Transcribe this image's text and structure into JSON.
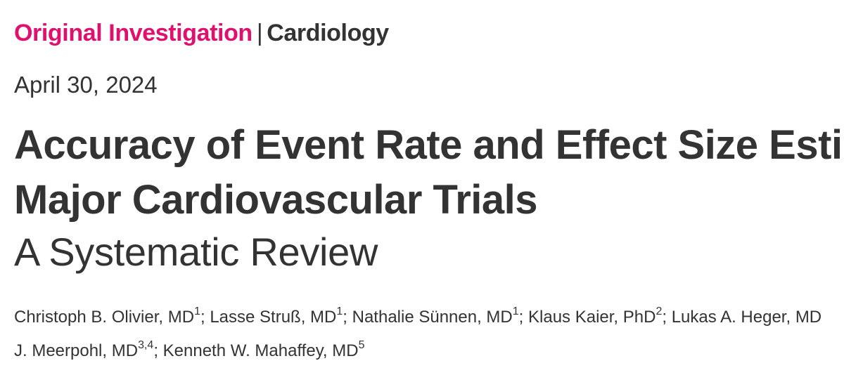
{
  "article": {
    "type": "Original Investigation",
    "separator": "|",
    "specialty": "Cardiology",
    "date": "April 30, 2024",
    "title_line1": "Accuracy of Event Rate and Effect Size Esti",
    "title_line2": "Major Cardiovascular Trials",
    "subtitle": "A Systematic Review"
  },
  "authors": [
    {
      "name": "Christoph B. Olivier, MD",
      "aff": "1",
      "sep": "; "
    },
    {
      "name": "Lasse Struß, MD",
      "aff": "1",
      "sep": "; "
    },
    {
      "name": "Nathalie Sünnen, MD",
      "aff": "1",
      "sep": "; "
    },
    {
      "name": "Klaus Kaier, PhD",
      "aff": "2",
      "sep": "; "
    },
    {
      "name": "Lukas A. Heger, MD",
      "aff": "",
      "sep": ""
    }
  ],
  "authors_line2": [
    {
      "name": "J. Meerpohl, MD",
      "aff": "3,4",
      "sep": "; "
    },
    {
      "name": "Kenneth W. Mahaffey, MD",
      "aff": "5",
      "sep": ""
    }
  ]
}
